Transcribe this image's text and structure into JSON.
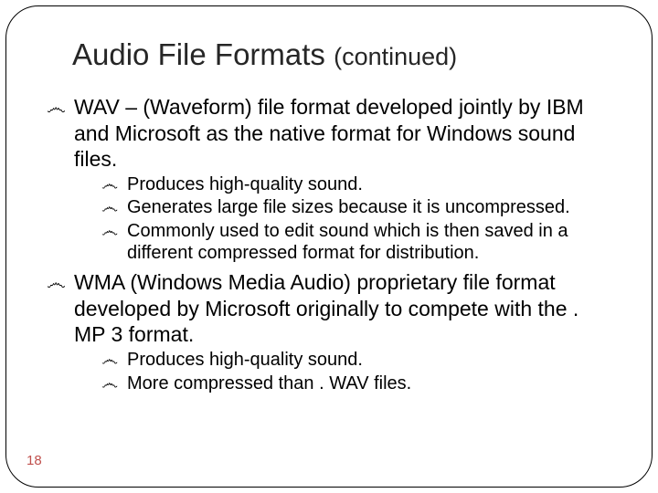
{
  "title_main": "Audio File Formats ",
  "title_cont": "(continued)",
  "bullet_glyph": "෴",
  "items": [
    {
      "text": "WAV – (Waveform) file format developed jointly by IBM and Microsoft as the native format for Windows sound files.",
      "subs": [
        "Produces high-quality sound.",
        "Generates large file sizes because it is uncompressed.",
        "Commonly used to edit sound which is then saved in a different compressed format for distribution."
      ]
    },
    {
      "text": "WMA (Windows Media Audio) proprietary file format developed by Microsoft originally to compete with the . MP 3 format.",
      "subs": [
        "Produces high-quality sound.",
        "More compressed than . WAV files."
      ]
    }
  ],
  "page_number": "18",
  "colors": {
    "page_num": "#c0504d",
    "text": "#000000",
    "title": "#262626",
    "frame": "#000000",
    "background": "#ffffff"
  },
  "fontsize": {
    "title": 33,
    "title_cont": 27,
    "main": 23,
    "sub": 20,
    "page_num": 15
  }
}
